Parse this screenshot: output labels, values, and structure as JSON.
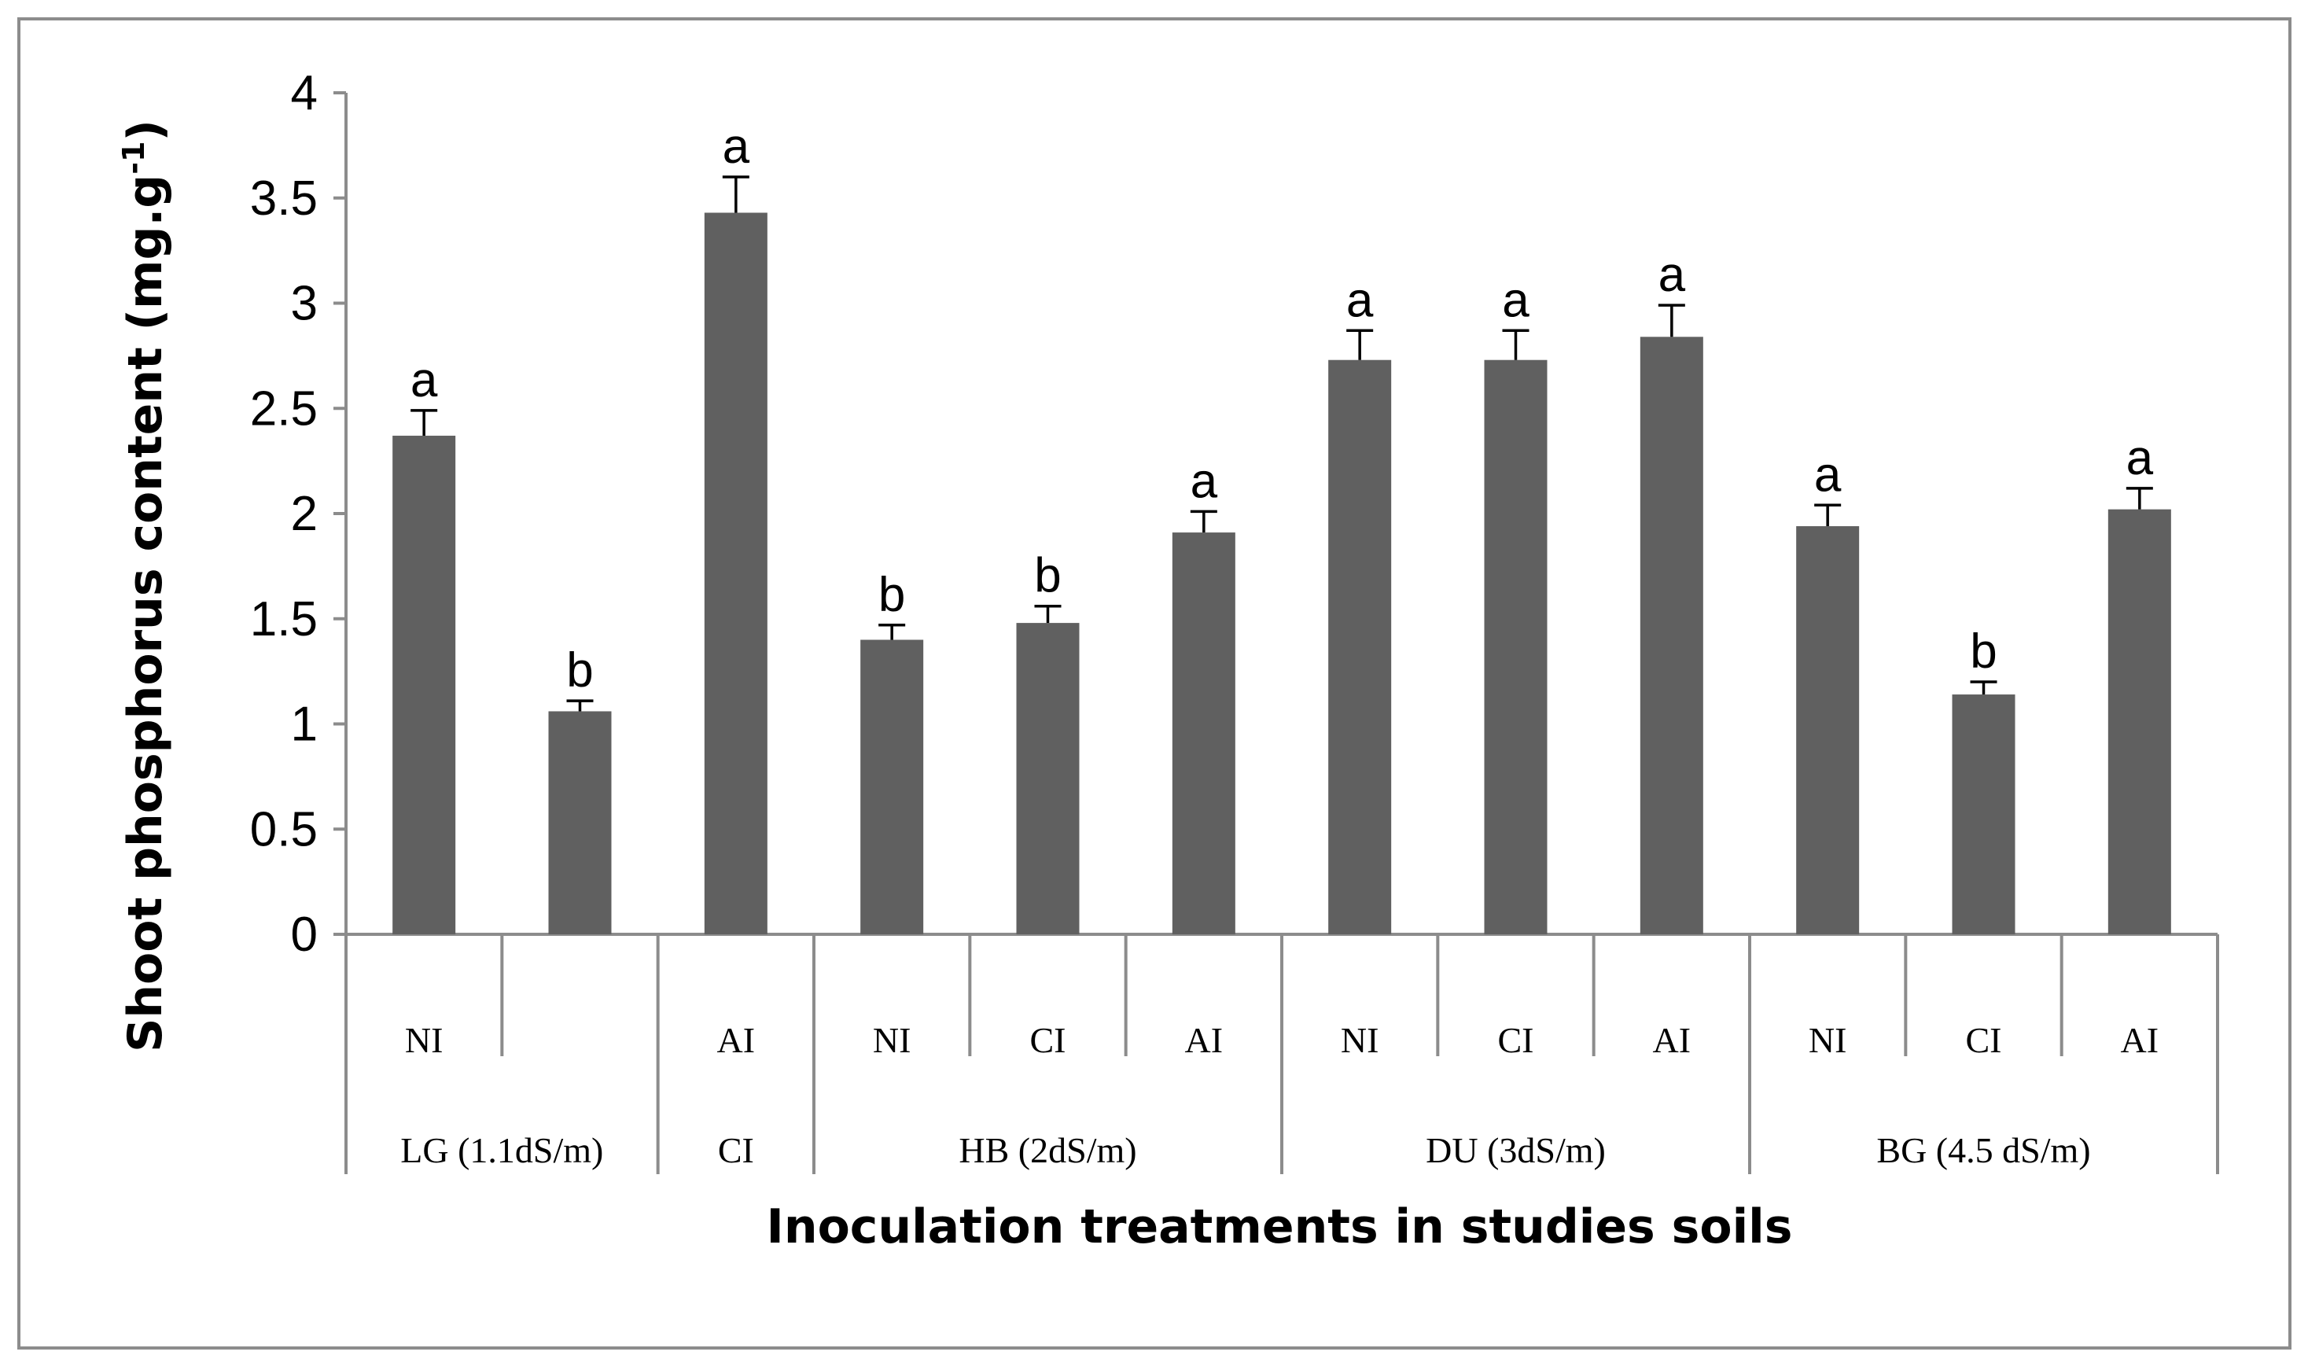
{
  "chart_data": {
    "type": "bar",
    "title": "",
    "xlabel": "Inoculation treatments in studies soils",
    "ylabel": "Shoot phosphorus content (mg.g",
    "ylabel_superscript": "-1",
    "ylabel_suffix": ")",
    "ylim": [
      0,
      4
    ],
    "yticks": [
      "0",
      "0.5",
      "1",
      "1.5",
      "2",
      "2.5",
      "3",
      "3.5",
      "4"
    ],
    "bar_color": "#606060",
    "axis_color": "#8c8c8c",
    "bars": [
      {
        "label": "NI",
        "value": 2.37,
        "error": 0.12,
        "letter": "a"
      },
      {
        "label": "",
        "value": 1.06,
        "error": 0.05,
        "letter": "b"
      },
      {
        "label": "AI",
        "value": 3.43,
        "error": 0.17,
        "letter": "a"
      },
      {
        "label": "NI",
        "value": 1.4,
        "error": 0.07,
        "letter": "b"
      },
      {
        "label": "CI",
        "value": 1.48,
        "error": 0.08,
        "letter": "b"
      },
      {
        "label": "AI",
        "value": 1.91,
        "error": 0.1,
        "letter": "a"
      },
      {
        "label": "NI",
        "value": 2.73,
        "error": 0.14,
        "letter": "a"
      },
      {
        "label": "CI",
        "value": 2.73,
        "error": 0.14,
        "letter": "a"
      },
      {
        "label": "AI",
        "value": 2.84,
        "error": 0.15,
        "letter": "a"
      },
      {
        "label": "NI",
        "value": 1.94,
        "error": 0.1,
        "letter": "a"
      },
      {
        "label": "CI",
        "value": 1.14,
        "error": 0.06,
        "letter": "b"
      },
      {
        "label": "AI",
        "value": 2.02,
        "error": 0.1,
        "letter": "a"
      }
    ],
    "groups": [
      {
        "label": "LG (1.1dS/m)",
        "span": [
          0,
          1
        ]
      },
      {
        "label": "CI",
        "span": [
          2,
          2
        ]
      },
      {
        "label": "HB (2dS/m)",
        "span": [
          3,
          5
        ]
      },
      {
        "label": "DU (3dS/m)",
        "span": [
          6,
          8
        ]
      },
      {
        "label": "BG (4.5 dS/m)",
        "span": [
          9,
          11
        ]
      }
    ]
  }
}
